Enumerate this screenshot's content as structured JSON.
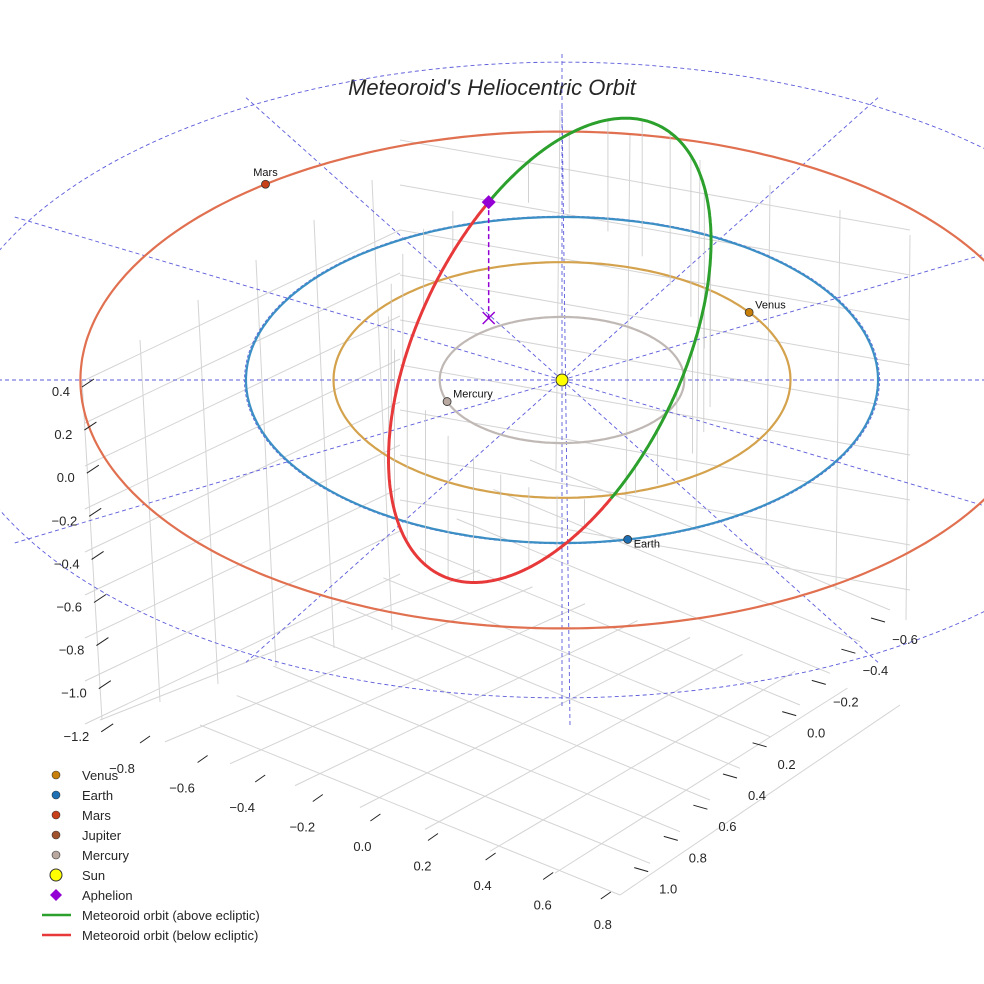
{
  "chart_data": {
    "type": "scatter3d",
    "title": "Meteoroid's Heliocentric Orbit",
    "axes": {
      "x": {
        "label": "",
        "ticks": [
          "−0.8",
          "−0.6",
          "−0.4",
          "−0.2",
          "0.0",
          "0.2",
          "0.4",
          "0.6",
          "0.8"
        ],
        "range": [
          -0.9,
          0.85
        ]
      },
      "y": {
        "label": "",
        "ticks": [
          "−0.6",
          "−0.4",
          "−0.2",
          "0.0",
          "0.2",
          "0.4",
          "0.6",
          "0.8",
          "1.0"
        ],
        "range": [
          -0.7,
          1.1
        ]
      },
      "z": {
        "label": "",
        "ticks": [
          "0.4",
          "0.2",
          "0.0",
          "−0.2",
          "−0.4",
          "−0.6",
          "−0.8",
          "−1.0",
          "−1.2"
        ],
        "range": [
          -1.25,
          0.5
        ]
      },
      "grid": true
    },
    "planets": [
      {
        "name": "Venus",
        "a": 0.723,
        "marker_angle_deg": 35,
        "orbit_color": "#d4a24c",
        "marker_color": "#c87f0a"
      },
      {
        "name": "Earth",
        "a": 1.0,
        "marker_angle_deg": -78,
        "orbit_color": "#3b8fc4",
        "marker_color": "#1f6fb4"
      },
      {
        "name": "Mars",
        "a": 1.524,
        "marker_angle_deg": 128,
        "orbit_color": "#e07050",
        "marker_color": "#c8401a"
      },
      {
        "name": "Jupiter",
        "a": 5.2,
        "marker_angle_deg": null,
        "orbit_color": "#a0522d",
        "marker_color": "#a0522d"
      },
      {
        "name": "Mercury",
        "a": 0.387,
        "marker_angle_deg": 200,
        "orbit_color": "#c0b8b4",
        "marker_color": "#b8a8a0"
      }
    ],
    "sun": {
      "name": "Sun",
      "x": 0,
      "y": 0,
      "z": 0,
      "color": "#ffff00"
    },
    "aphelion": {
      "name": "Aphelion",
      "color": "#9400d3"
    },
    "meteoroid_orbit": {
      "above_label": "Meteoroid orbit (above ecliptic)",
      "below_label": "Meteoroid orbit (below ecliptic)",
      "above_color": "#2ca02c",
      "below_color": "#e8393a",
      "semi_major_axis": 0.93,
      "eccentricity": 0.2,
      "inclination_deg": 58
    },
    "legend": {
      "placement": "bottom-left",
      "entries": [
        {
          "label": "Venus",
          "kind": "dot",
          "color": "#c87f0a"
        },
        {
          "label": "Earth",
          "kind": "dot",
          "color": "#1f6fb4"
        },
        {
          "label": "Mars",
          "kind": "dot",
          "color": "#c8401a"
        },
        {
          "label": "Jupiter",
          "kind": "dot",
          "color": "#a0522d"
        },
        {
          "label": "Mercury",
          "kind": "dot",
          "color": "#b8a8a0"
        },
        {
          "label": "Sun",
          "kind": "sun",
          "color": "#ffff00"
        },
        {
          "label": "Aphelion",
          "kind": "diamond",
          "color": "#9400d3"
        },
        {
          "label": "Meteoroid orbit (above ecliptic)",
          "kind": "line",
          "color": "#2ca02c"
        },
        {
          "label": "Meteoroid orbit (below ecliptic)",
          "kind": "line",
          "color": "#e8393a"
        }
      ]
    },
    "planet_labels": [
      "Mars",
      "Venus",
      "Mercury",
      "Earth"
    ]
  }
}
